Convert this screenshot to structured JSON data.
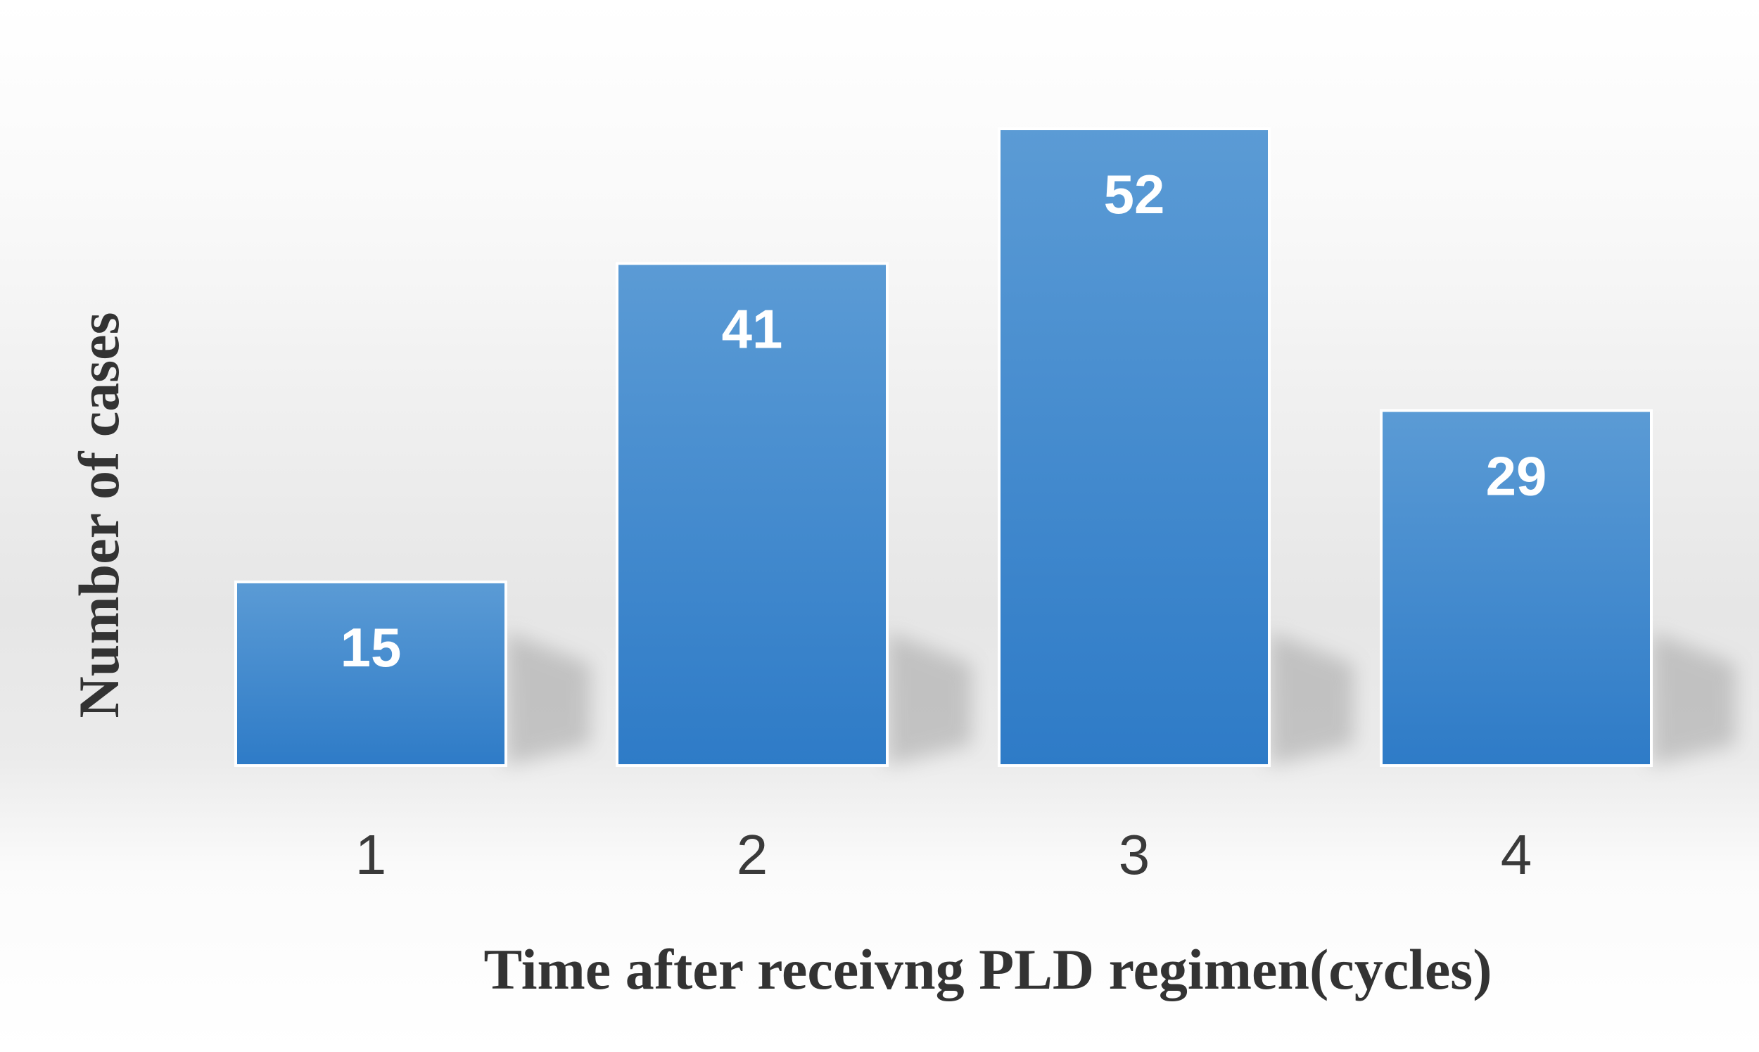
{
  "chart_data": {
    "type": "bar",
    "categories": [
      "1",
      "2",
      "3",
      "4"
    ],
    "values": [
      15,
      41,
      52,
      29
    ],
    "data_labels": [
      "15",
      "41",
      "52",
      "29"
    ],
    "title": "",
    "xlabel": "Time after receivng PLD regimen(cycles)",
    "ylabel": "Number of cases",
    "ylim": [
      0,
      52
    ],
    "grid": false,
    "legend": "none",
    "colors": {
      "bar_top": "#5b9bd5",
      "bar_bottom": "#2e7bc7",
      "bar_edge": "#ffffff",
      "background_top": "#ffffff",
      "background_band": "#e3e3e3",
      "label_text": "#ffffff",
      "tick_text": "#3a3a3a",
      "axis_title_text": "#333333"
    }
  }
}
